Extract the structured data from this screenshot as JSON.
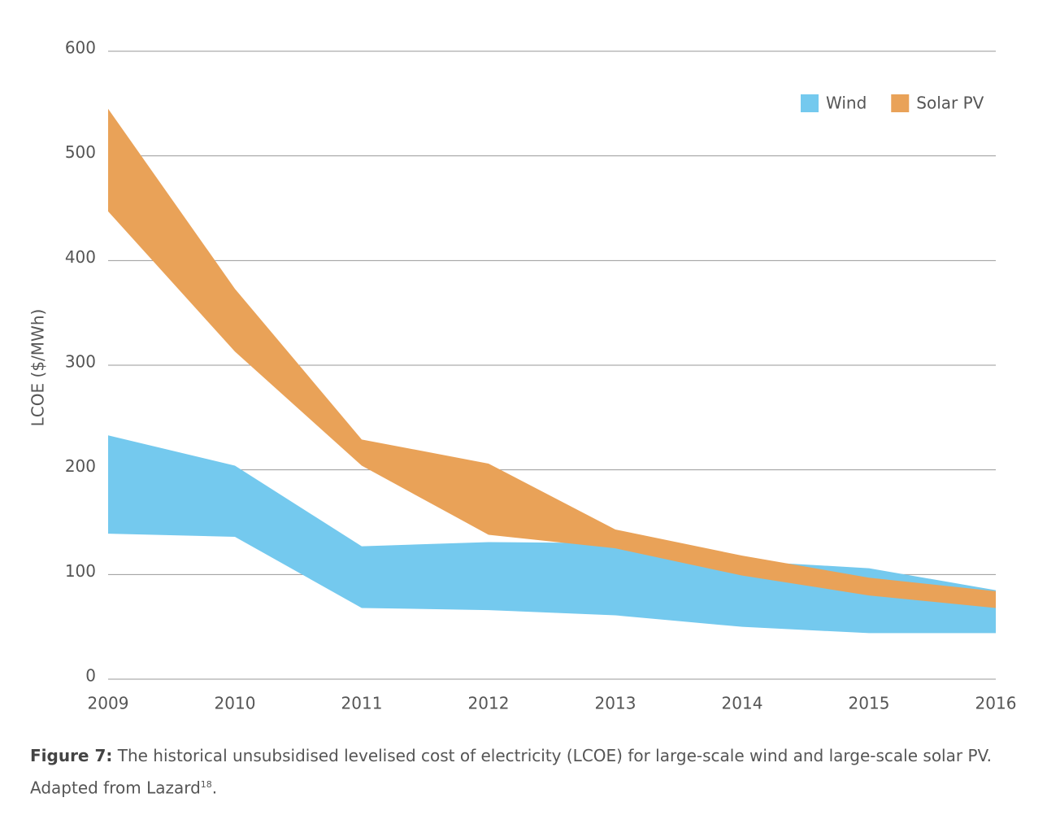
{
  "chart_data": {
    "type": "range-area",
    "y_label": "LCOE ($/MWh)",
    "categories": [
      "2009",
      "2010",
      "2011",
      "2012",
      "2013",
      "2014",
      "2015",
      "2016"
    ],
    "series": [
      {
        "name": "Wind",
        "color": "#74c9ee",
        "high": [
          233,
          204,
          127,
          131,
          130,
          113,
          106,
          85
        ],
        "low": [
          139,
          136,
          68,
          66,
          61,
          50,
          44,
          44
        ]
      },
      {
        "name": "Solar PV",
        "color": "#e9a258",
        "high": [
          545,
          373,
          229,
          206,
          143,
          118,
          97,
          84
        ],
        "low": [
          447,
          313,
          204,
          138,
          125,
          99,
          80,
          68
        ]
      }
    ],
    "ylim": [
      0,
      600
    ],
    "yticks": [
      0,
      100,
      200,
      300,
      400,
      500,
      600
    ],
    "grid": true,
    "legend": "top-right"
  },
  "caption": {
    "label": "Figure 7:",
    "text": " The historical unsubsidised levelised cost of electricity (LCOE) for large-scale wind and large-scale solar PV. Adapted from Lazard",
    "ref": "18",
    "end": "."
  }
}
